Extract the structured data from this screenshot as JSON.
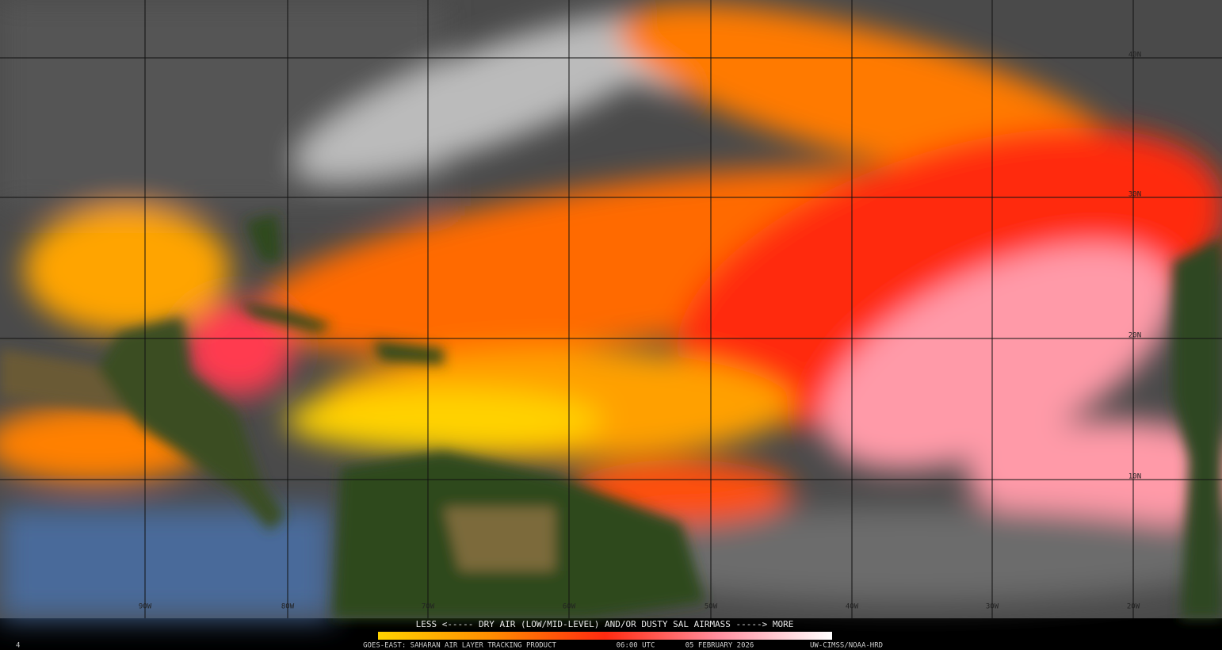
{
  "map": {
    "lat_labels": [
      "40N",
      "30N",
      "20N",
      "10N"
    ],
    "lon_labels": [
      "90W",
      "80W",
      "70W",
      "60W",
      "50W",
      "40W",
      "30W",
      "20W"
    ]
  },
  "legend": {
    "caption": "LESS <----- DRY AIR (LOW/MID-LEVEL) AND/OR DUSTY SAL AIRMASS -----> MORE"
  },
  "footer": {
    "corner": "4",
    "product": "GOES-EAST: SAHARAN AIR LAYER TRACKING PRODUCT",
    "time": "06:00 UTC",
    "date": "05 FEBRUARY 2026",
    "credit": "UW-CIMSS/NOAA-HRD"
  }
}
